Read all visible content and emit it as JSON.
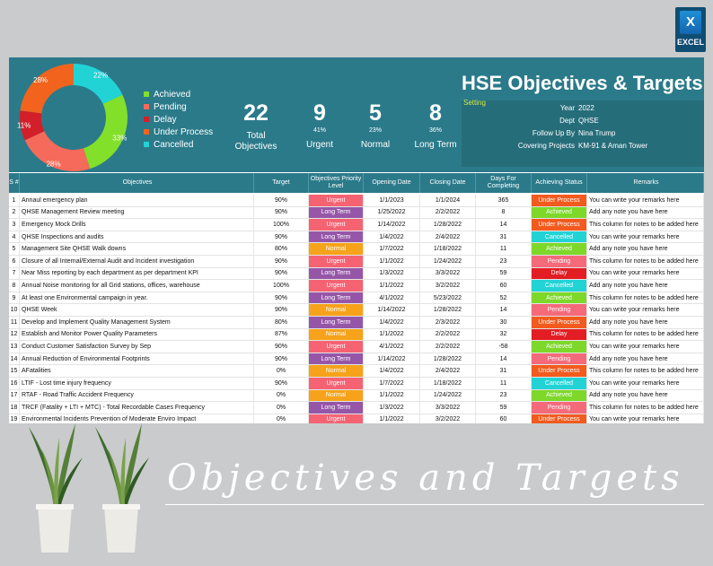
{
  "badge": {
    "label": "EXCEL",
    "icon": "excel-icon"
  },
  "chart_data": {
    "type": "pie",
    "categories": [
      "Achieved",
      "Pending",
      "Delay",
      "Under Process",
      "Cancelled"
    ],
    "values": [
      33,
      28,
      11,
      28,
      22
    ],
    "labels": [
      "33%",
      "28%",
      "11%",
      "28%",
      "22%"
    ],
    "colors": [
      "#82e02b",
      "#f56a5a",
      "#d31f2a",
      "#f2641e",
      "#22d3d6"
    ],
    "legend": "right"
  },
  "kpis": [
    {
      "value": "22",
      "pct": "",
      "caption": "Total\nObjectives"
    },
    {
      "value": "9",
      "pct": "41%",
      "caption": "Urgent"
    },
    {
      "value": "5",
      "pct": "23%",
      "caption": "Normal"
    },
    {
      "value": "8",
      "pct": "36%",
      "caption": "Long Term"
    }
  ],
  "title": "HSE Objectives & Targets",
  "setting": "Setting",
  "info": [
    {
      "key": "Year",
      "value": "2022"
    },
    {
      "key": "Dept",
      "value": "QHSE"
    },
    {
      "key": "Follow Up By",
      "value": "Nina Trump"
    },
    {
      "key": "Covering Projects",
      "value": "KM-91 & Aman Tower"
    }
  ],
  "columns": [
    "S #",
    "Objectives",
    "Target",
    "Objectives Priority Level",
    "Opening Date",
    "Closing Date",
    "Days For Completing",
    "Achieving Status",
    "Remarks"
  ],
  "priority_colors": {
    "Urgent": "#f56373",
    "Long Term": "#9656a8",
    "Normal": "#f6a21a"
  },
  "status_colors": {
    "Under Process": "#f25a1e",
    "Achieved": "#7dd82a",
    "Cancelled": "#22d3d6",
    "Pending": "#f56a7a",
    "Delay": "#e31d23"
  },
  "rows": [
    [
      "1",
      "Annaul emergency plan",
      "90%",
      "Urgent",
      "1/1/2023",
      "1/1/2024",
      "365",
      "Under Process",
      "You can write your remarks here"
    ],
    [
      "2",
      "QHSE Management Review meeting",
      "90%",
      "Long Term",
      "1/25/2022",
      "2/2/2022",
      "8",
      "Achieved",
      "Add any note you have here"
    ],
    [
      "3",
      "Emergency Mock Drills",
      "100%",
      "Urgent",
      "1/14/2022",
      "1/28/2022",
      "14",
      "Under Process",
      "This column for notes to be added here"
    ],
    [
      "4",
      "QHSE Inspections and audits",
      "90%",
      "Long Term",
      "1/4/2022",
      "2/4/2022",
      "31",
      "Cancelled",
      "You can write your remarks here"
    ],
    [
      "5",
      "Management Site QHSE Walk downs",
      "80%",
      "Normal",
      "1/7/2022",
      "1/18/2022",
      "11",
      "Achieved",
      "Add any note you have here"
    ],
    [
      "6",
      "Closure of all Internal/External Audit and Incident investigation",
      "90%",
      "Urgent",
      "1/1/2022",
      "1/24/2022",
      "23",
      "Pending",
      "This column for notes to be added here"
    ],
    [
      "7",
      "Near Miss reporting by each department as per department KPI",
      "90%",
      "Long Term",
      "1/3/2022",
      "3/3/2022",
      "59",
      "Delay",
      "You can write your remarks here"
    ],
    [
      "8",
      "Annual Noise monitoring for all Grid stations, offices, warehouse",
      "100%",
      "Urgent",
      "1/1/2022",
      "3/2/2022",
      "60",
      "Cancelled",
      "Add any note you have here"
    ],
    [
      "9",
      "At least one Environmental campaign in year.",
      "90%",
      "Long Term",
      "4/1/2022",
      "5/23/2022",
      "52",
      "Achieved",
      "This column for notes to be added here"
    ],
    [
      "10",
      "QHSE Week",
      "90%",
      "Normal",
      "1/14/2022",
      "1/28/2022",
      "14",
      "Pending",
      "You can write your remarks here"
    ],
    [
      "11",
      "Develop and Implement Quality Management System",
      "80%",
      "Long Term",
      "1/4/2022",
      "2/3/2022",
      "30",
      "Under Process",
      "Add any note you have here"
    ],
    [
      "12",
      "Establish and Monitor Power Quality Parameters",
      "87%",
      "Normal",
      "1/1/2022",
      "2/2/2022",
      "32",
      "Delay",
      "This column for notes to be added here"
    ],
    [
      "13",
      "Conduct Customer Satisfaction Survey by Sep",
      "90%",
      "Urgent",
      "4/1/2022",
      "2/2/2022",
      "-58",
      "Achieved",
      "You can write your remarks here"
    ],
    [
      "14",
      "Annual Reduction of Environmental Footprints",
      "90%",
      "Long Term",
      "1/14/2022",
      "1/28/2022",
      "14",
      "Pending",
      "Add any note you have here"
    ],
    [
      "15",
      "AFatalities",
      "0%",
      "Normal",
      "1/4/2022",
      "2/4/2022",
      "31",
      "Under Process",
      "This column for notes to be added here"
    ],
    [
      "16",
      "LTIF - Lost time injury frequency",
      "90%",
      "Urgent",
      "1/7/2022",
      "1/18/2022",
      "11",
      "Cancelled",
      "You can write your remarks here"
    ],
    [
      "17",
      "RTAF - Road Traffic Accident Frequency",
      "0%",
      "Normal",
      "1/1/2022",
      "1/24/2022",
      "23",
      "Achieved",
      "Add any note you have here"
    ],
    [
      "18",
      "TRCF (Fatality + LTI + MTC) - Total Recordable Cases Frequency",
      "0%",
      "Long Term",
      "1/3/2022",
      "3/3/2022",
      "59",
      "Pending",
      "This column for notes to be added here"
    ],
    [
      "19",
      "Environmental Incidents Prevention of Moderate Enviro Impact",
      "0%",
      "Urgent",
      "1/1/2022",
      "3/2/2022",
      "60",
      "Under Process",
      "You can write your remarks here"
    ]
  ],
  "banner": "Objectives and Targets"
}
